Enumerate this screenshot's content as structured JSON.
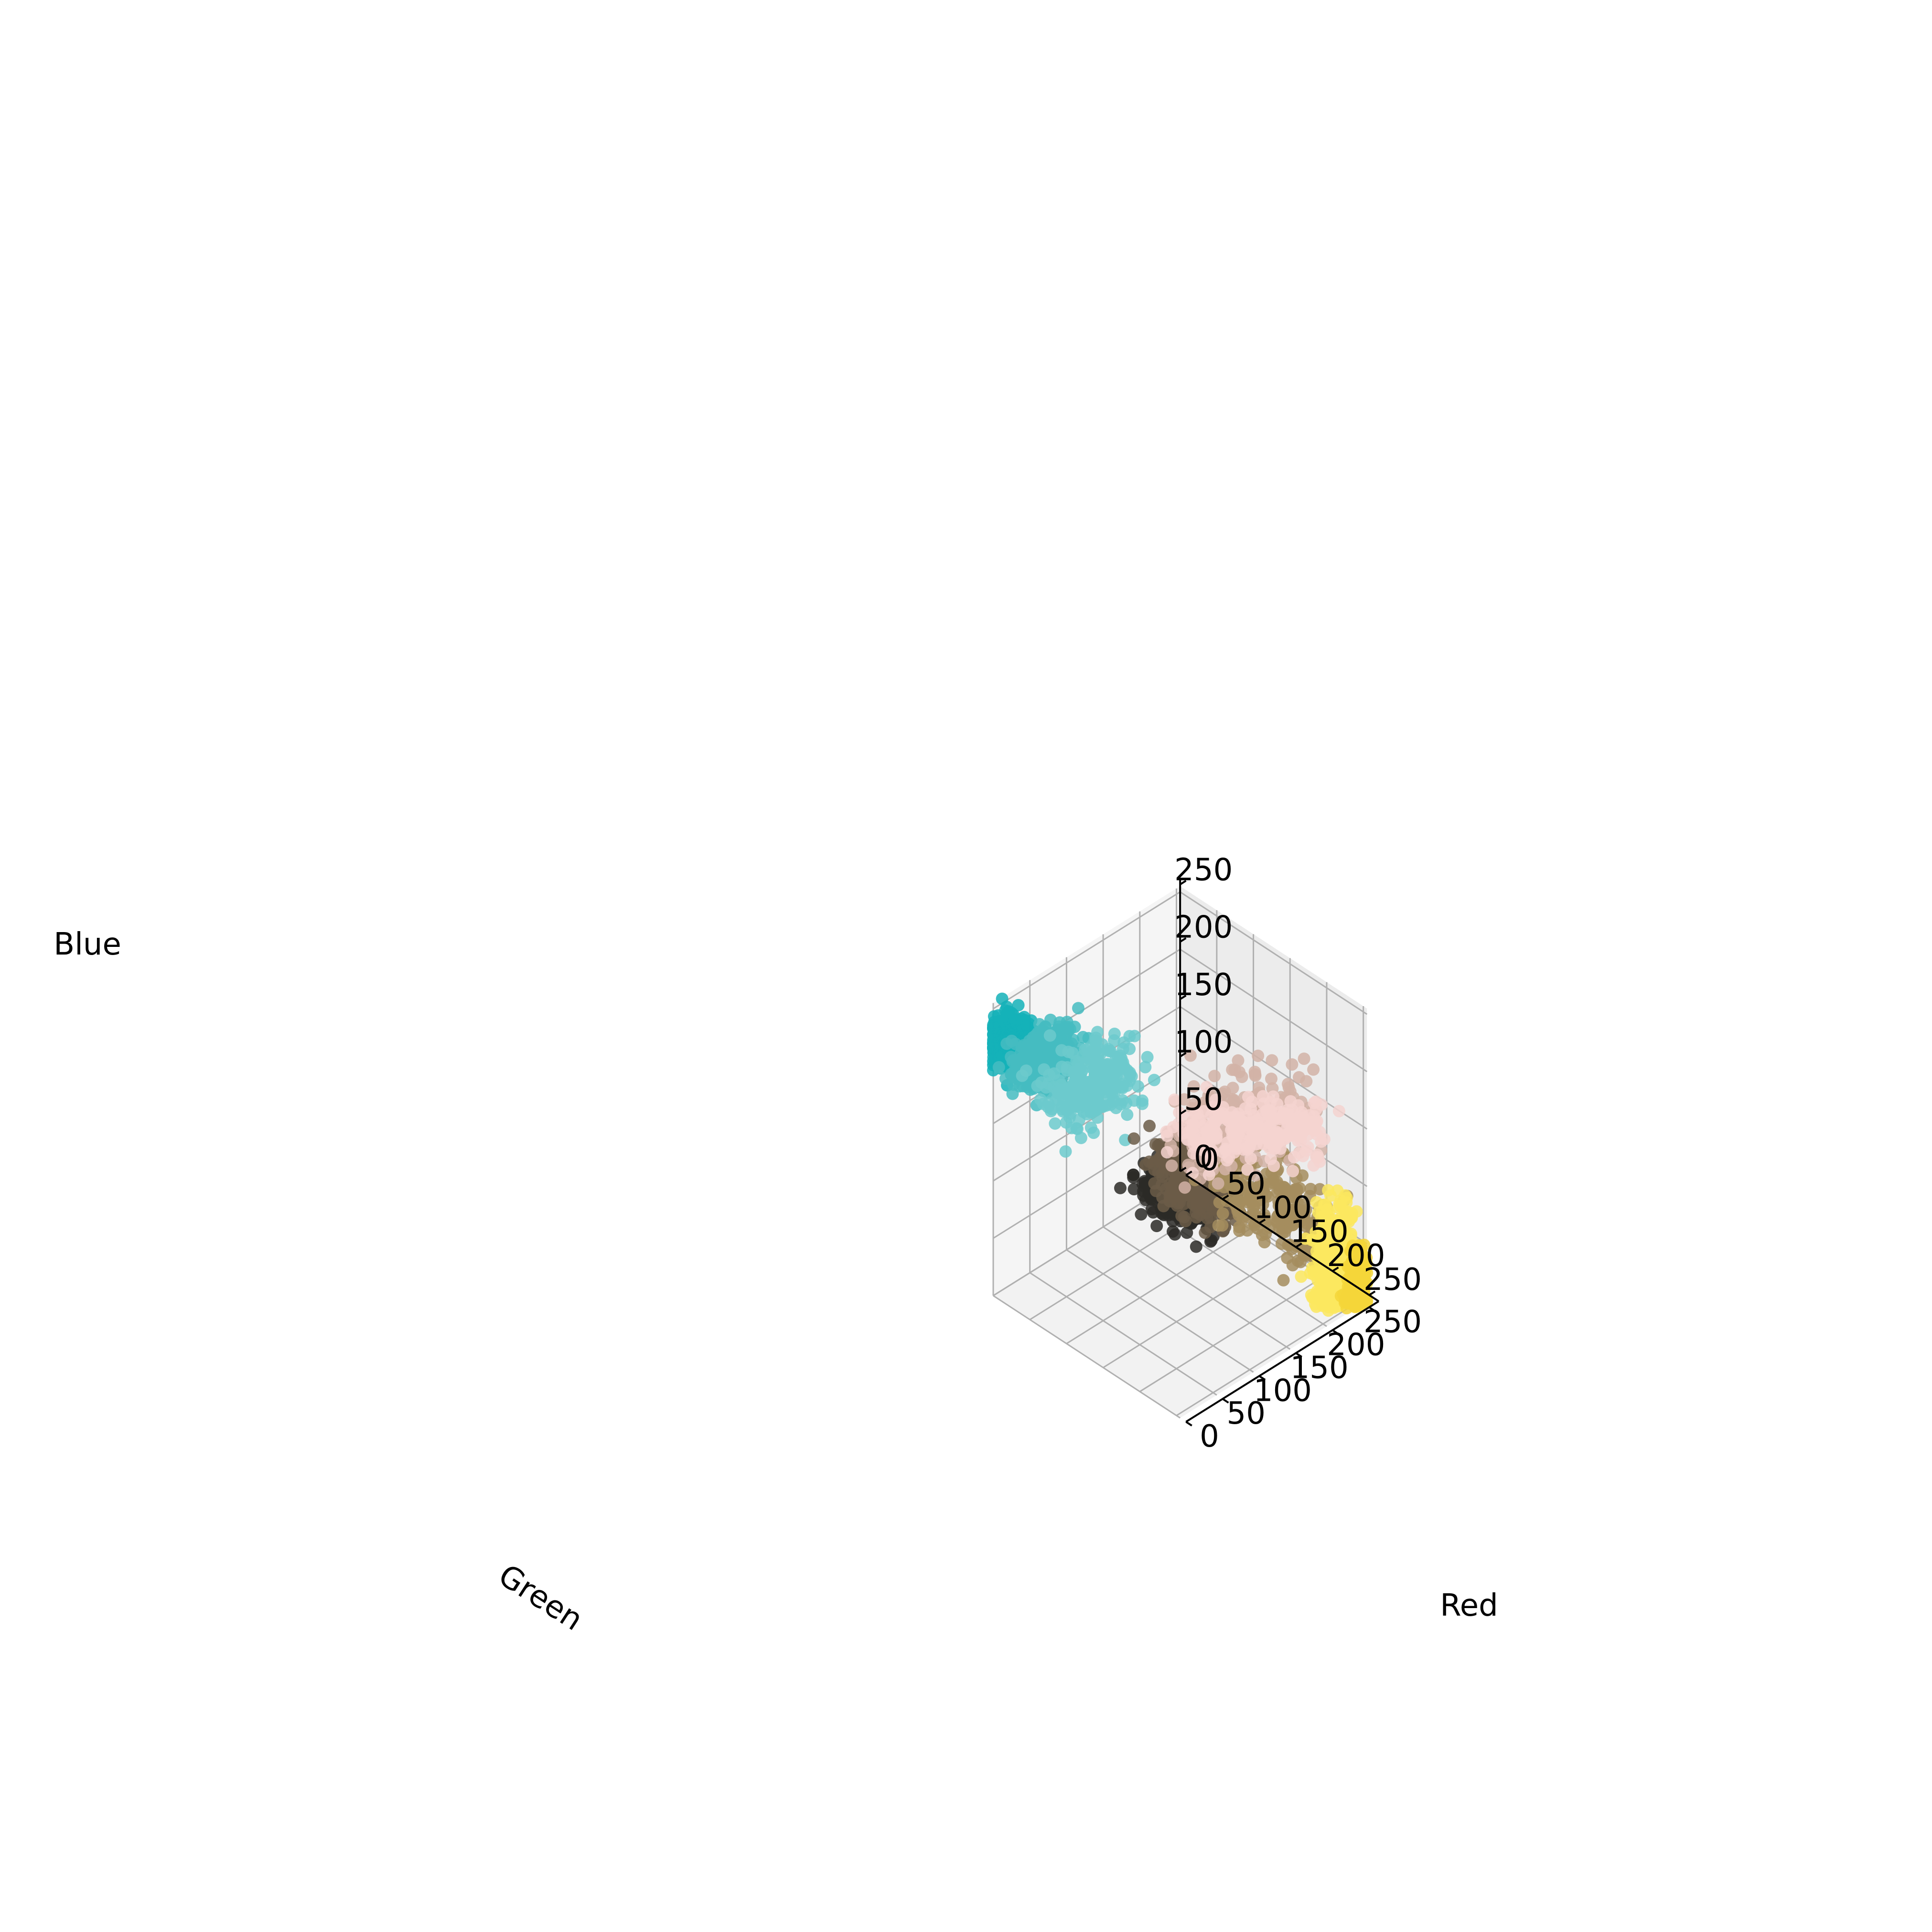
{
  "chart_data": {
    "type": "scatter",
    "projection": "3d",
    "title": "",
    "xlabel": "Red",
    "ylabel": "Green",
    "zlabel": "Blue",
    "xlim": [
      0,
      255
    ],
    "ylim": [
      0,
      255
    ],
    "zlim": [
      0,
      255
    ],
    "ticks": [
      0,
      50,
      100,
      150,
      200,
      250
    ],
    "tick_labels": [
      "0",
      "50",
      "100",
      "150",
      "200",
      "250"
    ],
    "grid": true,
    "legend": "none",
    "clusters": [
      {
        "color": "#14b1b8",
        "center": [
          10,
          10,
          225
        ],
        "spread": [
          9,
          9,
          11
        ],
        "axis": [
          1,
          1,
          0.5
        ],
        "length": 35
      },
      {
        "color": "#45bcc1",
        "center": [
          35,
          33,
          205
        ],
        "spread": [
          12,
          12,
          12
        ],
        "axis": [
          1,
          1,
          0.6
        ],
        "length": 45
      },
      {
        "color": "#6ccacd",
        "center": [
          70,
          65,
          185
        ],
        "spread": [
          14,
          14,
          14
        ],
        "axis": [
          1,
          1,
          0.6
        ],
        "length": 60
      },
      {
        "color": "#2b2a27",
        "center": [
          60,
          195,
          140
        ],
        "spread": [
          10,
          20,
          10
        ],
        "axis": [
          0.2,
          -1,
          -0.3
        ],
        "length": 80
      },
      {
        "color": "#6b5c48",
        "center": [
          85,
          185,
          145
        ],
        "spread": [
          12,
          20,
          12
        ],
        "axis": [
          0.3,
          -1,
          -0.2
        ],
        "length": 90
      },
      {
        "color": "#a48d5e",
        "center": [
          160,
          225,
          110
        ],
        "spread": [
          16,
          16,
          16
        ],
        "axis": [
          0.8,
          0.5,
          -0.6
        ],
        "length": 130
      },
      {
        "color": "#d2b3a7",
        "center": [
          165,
          170,
          155
        ],
        "spread": [
          16,
          18,
          16
        ],
        "axis": [
          1,
          0.5,
          0.2
        ],
        "length": 110
      },
      {
        "color": "#f5d4d0",
        "center": [
          175,
          180,
          150
        ],
        "spread": [
          12,
          12,
          12
        ],
        "axis": [
          0.8,
          1,
          0.1
        ],
        "length": 130
      },
      {
        "color": "#fce85f",
        "center": [
          232,
          232,
          38
        ],
        "spread": [
          10,
          10,
          14
        ],
        "axis": [
          0.1,
          0.1,
          1
        ],
        "length": 70
      },
      {
        "color": "#f4d63a",
        "center": [
          248,
          248,
          12
        ],
        "spread": [
          5,
          5,
          10
        ],
        "axis": [
          0.1,
          0.1,
          1
        ],
        "length": 50
      }
    ]
  }
}
